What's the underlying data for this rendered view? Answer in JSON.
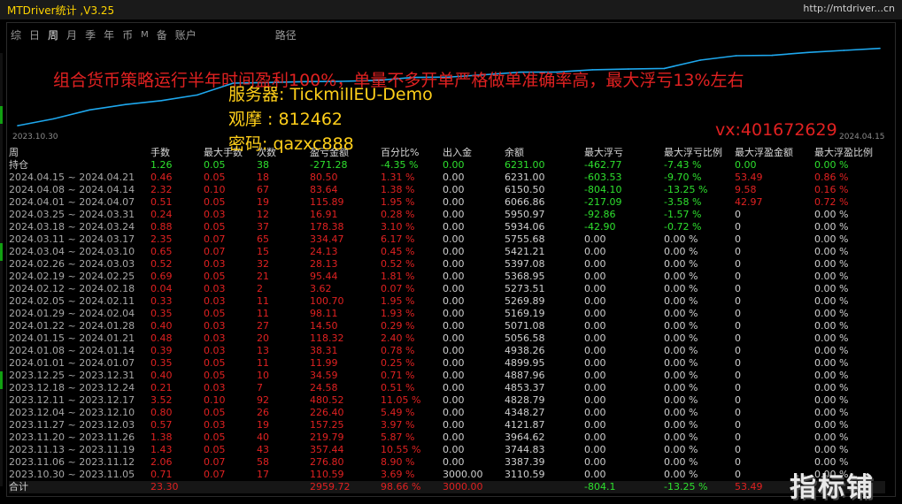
{
  "window": {
    "title": "MTDriver统计 ,V3.25",
    "link": "http://mtdriver...cn"
  },
  "tabs": [
    {
      "label": "综",
      "active": false,
      "small": false
    },
    {
      "label": "日",
      "active": false,
      "small": false
    },
    {
      "label": "周",
      "active": true,
      "small": false
    },
    {
      "label": "月",
      "active": false,
      "small": false
    },
    {
      "label": "季",
      "active": false,
      "small": false
    },
    {
      "label": "年",
      "active": false,
      "small": false
    },
    {
      "label": "币",
      "active": false,
      "small": false
    },
    {
      "label": "M",
      "active": false,
      "small": true
    },
    {
      "label": "备",
      "active": false,
      "small": false
    },
    {
      "label": "账户",
      "active": false,
      "small": false
    },
    {
      "label": "路径",
      "active": false,
      "small": false,
      "route": true
    }
  ],
  "overlay": {
    "promo": "组合货币策略运行半年时间盈利100%，单量不多开单严格做单准确率高，最大浮亏13%左右",
    "server": "服务器: TickmillEU-Demo",
    "observe": "观摩 : 812462",
    "password": "密码: qazxc888",
    "vx": "vx:401672629"
  },
  "chart_data": {
    "type": "line",
    "x_start": "2023.10.30",
    "x_end": "2024.04.15",
    "x": [
      "2023.10.30",
      "2023.11.06",
      "2023.11.13",
      "2023.11.20",
      "2023.11.27",
      "2023.12.04",
      "2023.12.11",
      "2023.12.18",
      "2023.12.25",
      "2024.01.01",
      "2024.01.08",
      "2024.01.15",
      "2024.01.22",
      "2024.01.29",
      "2024.02.05",
      "2024.02.12",
      "2024.02.19",
      "2024.02.26",
      "2024.03.04",
      "2024.03.11",
      "2024.03.18",
      "2024.03.25",
      "2024.04.01",
      "2024.04.08",
      "2024.04.15"
    ],
    "values": [
      3110.59,
      3387.39,
      3744.83,
      3964.62,
      4121.87,
      4348.27,
      4828.79,
      4853.37,
      4887.96,
      4899.95,
      4938.26,
      5056.58,
      5071.08,
      5169.19,
      5269.89,
      5273.51,
      5368.95,
      5397.08,
      5421.21,
      5755.68,
      5934.06,
      5950.97,
      6066.86,
      6150.5,
      6231.0
    ],
    "color": "#1ea8ee"
  },
  "table": {
    "headers": [
      "周",
      "手数",
      "最大手数",
      "次数",
      "盈亏金额",
      "百分比%",
      "出入金",
      "余额",
      "最大浮亏",
      "最大浮亏比例",
      "最大浮盈金额",
      "最大浮盈比例"
    ],
    "holding": [
      "持仓",
      "1.26",
      "0.05",
      "38",
      "-271.28",
      "-4.35 %",
      "0.00",
      "6231.00",
      "-462.77",
      "-7.43 %",
      "0.00",
      "0.00 %"
    ],
    "rows": [
      [
        "2024.04.15 ~ 2024.04.21",
        "0.46",
        "0.05",
        "18",
        "80.50",
        "1.31 %",
        "0.00",
        "6231.00",
        "-603.53",
        "-9.70 %",
        "53.49",
        "0.86 %"
      ],
      [
        "2024.04.08 ~ 2024.04.14",
        "2.32",
        "0.10",
        "67",
        "83.64",
        "1.38 %",
        "0.00",
        "6150.50",
        "-804.10",
        "-13.25 %",
        "9.58",
        "0.16 %"
      ],
      [
        "2024.04.01 ~ 2024.04.07",
        "0.51",
        "0.05",
        "19",
        "115.89",
        "1.95 %",
        "0.00",
        "6066.86",
        "-217.09",
        "-3.58 %",
        "42.97",
        "0.72 %"
      ],
      [
        "2024.03.25 ~ 2024.03.31",
        "0.24",
        "0.03",
        "12",
        "16.91",
        "0.28 %",
        "0.00",
        "5950.97",
        "-92.86",
        "-1.57 %",
        "0",
        "0.00 %"
      ],
      [
        "2024.03.18 ~ 2024.03.24",
        "0.88",
        "0.05",
        "37",
        "178.38",
        "3.10 %",
        "0.00",
        "5934.06",
        "-42.90",
        "-0.72 %",
        "0",
        "0.00 %"
      ],
      [
        "2024.03.11 ~ 2024.03.17",
        "2.35",
        "0.07",
        "65",
        "334.47",
        "6.17 %",
        "0.00",
        "5755.68",
        "0.00",
        "0.00 %",
        "0",
        "0.00 %"
      ],
      [
        "2024.03.04 ~ 2024.03.10",
        "0.65",
        "0.07",
        "15",
        "24.13",
        "0.45 %",
        "0.00",
        "5421.21",
        "0.00",
        "0.00 %",
        "0",
        "0.00 %"
      ],
      [
        "2024.02.26 ~ 2024.03.03",
        "0.52",
        "0.03",
        "32",
        "28.13",
        "0.52 %",
        "0.00",
        "5397.08",
        "0.00",
        "0.00 %",
        "0",
        "0.00 %"
      ],
      [
        "2024.02.19 ~ 2024.02.25",
        "0.69",
        "0.05",
        "21",
        "95.44",
        "1.81 %",
        "0.00",
        "5368.95",
        "0.00",
        "0.00 %",
        "0",
        "0.00 %"
      ],
      [
        "2024.02.12 ~ 2024.02.18",
        "0.04",
        "0.03",
        "2",
        "3.62",
        "0.07 %",
        "0.00",
        "5273.51",
        "0.00",
        "0.00 %",
        "0",
        "0.00 %"
      ],
      [
        "2024.02.05 ~ 2024.02.11",
        "0.33",
        "0.03",
        "11",
        "100.70",
        "1.95 %",
        "0.00",
        "5269.89",
        "0.00",
        "0.00 %",
        "0",
        "0.00 %"
      ],
      [
        "2024.01.29 ~ 2024.02.04",
        "0.35",
        "0.05",
        "11",
        "98.11",
        "1.93 %",
        "0.00",
        "5169.19",
        "0.00",
        "0.00 %",
        "0",
        "0.00 %"
      ],
      [
        "2024.01.22 ~ 2024.01.28",
        "0.40",
        "0.03",
        "27",
        "14.50",
        "0.29 %",
        "0.00",
        "5071.08",
        "0.00",
        "0.00 %",
        "0",
        "0.00 %"
      ],
      [
        "2024.01.15 ~ 2024.01.21",
        "0.48",
        "0.03",
        "20",
        "118.32",
        "2.40 %",
        "0.00",
        "5056.58",
        "0.00",
        "0.00 %",
        "0",
        "0.00 %"
      ],
      [
        "2024.01.08 ~ 2024.01.14",
        "0.39",
        "0.03",
        "13",
        "38.31",
        "0.78 %",
        "0.00",
        "4938.26",
        "0.00",
        "0.00 %",
        "0",
        "0.00 %"
      ],
      [
        "2024.01.01 ~ 2024.01.07",
        "0.35",
        "0.05",
        "11",
        "11.99",
        "0.25 %",
        "0.00",
        "4899.95",
        "0.00",
        "0.00 %",
        "0",
        "0.00 %"
      ],
      [
        "2023.12.25 ~ 2023.12.31",
        "0.40",
        "0.05",
        "10",
        "34.59",
        "0.71 %",
        "0.00",
        "4887.96",
        "0.00",
        "0.00 %",
        "0",
        "0.00 %"
      ],
      [
        "2023.12.18 ~ 2023.12.24",
        "0.21",
        "0.03",
        "7",
        "24.58",
        "0.51 %",
        "0.00",
        "4853.37",
        "0.00",
        "0.00 %",
        "0",
        "0.00 %"
      ],
      [
        "2023.12.11 ~ 2023.12.17",
        "3.52",
        "0.10",
        "92",
        "480.52",
        "11.05 %",
        "0.00",
        "4828.79",
        "0.00",
        "0.00 %",
        "0",
        "0.00 %"
      ],
      [
        "2023.12.04 ~ 2023.12.10",
        "0.80",
        "0.05",
        "26",
        "226.40",
        "5.49 %",
        "0.00",
        "4348.27",
        "0.00",
        "0.00 %",
        "0",
        "0.00 %"
      ],
      [
        "2023.11.27 ~ 2023.12.03",
        "0.57",
        "0.03",
        "19",
        "157.25",
        "3.97 %",
        "0.00",
        "4121.87",
        "0.00",
        "0.00 %",
        "0",
        "0.00 %"
      ],
      [
        "2023.11.20 ~ 2023.11.26",
        "1.38",
        "0.05",
        "40",
        "219.79",
        "5.87 %",
        "0.00",
        "3964.62",
        "0.00",
        "0.00 %",
        "0",
        "0.00 %"
      ],
      [
        "2023.11.13 ~ 2023.11.19",
        "1.43",
        "0.05",
        "43",
        "357.44",
        "10.55 %",
        "0.00",
        "3744.83",
        "0.00",
        "0.00 %",
        "0",
        "0.00 %"
      ],
      [
        "2023.11.06 ~ 2023.11.12",
        "2.06",
        "0.07",
        "58",
        "276.80",
        "8.90 %",
        "0.00",
        "3387.39",
        "0.00",
        "0.00 %",
        "0",
        "0.00 %"
      ],
      [
        "2023.10.30 ~ 2023.11.05",
        "0.71",
        "0.07",
        "17",
        "110.59",
        "3.69 %",
        "3000.00",
        "3110.59",
        "0.00",
        "0.00 %",
        "0",
        "0.00 %"
      ]
    ],
    "total": [
      "合计",
      "23.30",
      "",
      "",
      "2959.72",
      "98.66 %",
      "3000.00",
      "",
      "-804.1",
      "-13.25 %",
      "53.49",
      ""
    ]
  },
  "watermark": "指标铺"
}
